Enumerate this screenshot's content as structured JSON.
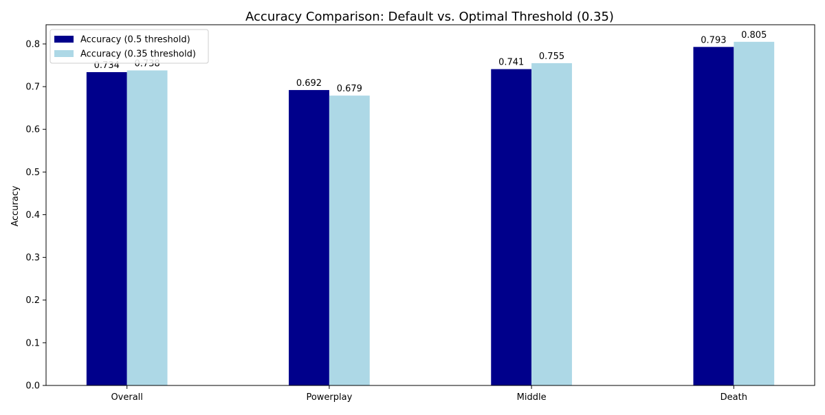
{
  "chart_data": {
    "type": "bar",
    "title": "Accuracy Comparison: Default vs. Optimal Threshold (0.35)",
    "xlabel": "",
    "ylabel": "Accuracy",
    "categories": [
      "Overall",
      "Powerplay",
      "Middle",
      "Death"
    ],
    "series": [
      {
        "name": "Accuracy (0.5 threshold)",
        "color": "#00008b",
        "values": [
          0.734,
          0.692,
          0.741,
          0.793
        ],
        "labels": [
          "0.734",
          "0.692",
          "0.741",
          "0.793"
        ]
      },
      {
        "name": "Accuracy (0.35 threshold)",
        "color": "#add8e6",
        "values": [
          0.738,
          0.679,
          0.755,
          0.805
        ],
        "labels": [
          "0.738",
          "0.679",
          "0.755",
          "0.805"
        ]
      }
    ],
    "ylim": [
      0,
      0.845
    ],
    "yticks": [
      0.0,
      0.1,
      0.2,
      0.3,
      0.4,
      0.5,
      0.6,
      0.7,
      0.8
    ],
    "ytick_labels": [
      "0.0",
      "0.1",
      "0.2",
      "0.3",
      "0.4",
      "0.5",
      "0.6",
      "0.7",
      "0.8"
    ],
    "grid": false,
    "legend_position": "top-left"
  }
}
